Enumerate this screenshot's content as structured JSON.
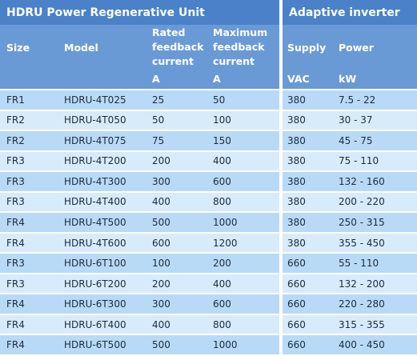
{
  "groups": {
    "left": "HDRU Power Regenerative Unit",
    "right": "Adaptive inverter"
  },
  "headers": [
    {
      "name": "Size",
      "unit": ""
    },
    {
      "name": "Model",
      "unit": ""
    },
    {
      "name": "Rated feedback current",
      "unit": "A"
    },
    {
      "name": "Maximum feedback current",
      "unit": "A"
    },
    {
      "name": "Supply",
      "unit": "VAC"
    },
    {
      "name": "Power",
      "unit": "kW"
    }
  ],
  "colors": {
    "group_header": "#4a81c9",
    "column_header": "#6a9ad6",
    "row_odd": "#b8daf7",
    "row_even": "#d8ebfb"
  },
  "rows": [
    [
      "FR1",
      "HDRU-4T025",
      "25",
      "50",
      "380",
      "7.5 - 22"
    ],
    [
      "FR2",
      "HDRU-4T050",
      "50",
      "100",
      "380",
      "30 - 37"
    ],
    [
      "FR2",
      "HDRU-4T075",
      "75",
      "150",
      "380",
      "45 - 75"
    ],
    [
      "FR3",
      "HDRU-4T200",
      "200",
      "400",
      "380",
      "75 - 110"
    ],
    [
      "FR3",
      "HDRU-4T300",
      "300",
      "600",
      "380",
      "132 - 160"
    ],
    [
      "FR3",
      "HDRU-4T400",
      "400",
      "800",
      "380",
      "200 - 220"
    ],
    [
      "FR4",
      "HDRU-4T500",
      "500",
      "1000",
      "380",
      "250 - 315"
    ],
    [
      "FR4",
      "HDRU-4T600",
      "600",
      "1200",
      "380",
      "355 - 450"
    ],
    [
      "FR3",
      "HDRU-6T100",
      "100",
      "200",
      "660",
      "55 - 110"
    ],
    [
      "FR3",
      "HDRU-6T200",
      "200",
      "400",
      "660",
      "132 - 200"
    ],
    [
      "FR4",
      "HDRU-6T300",
      "300",
      "600",
      "660",
      "220 - 280"
    ],
    [
      "FR4",
      "HDRU-6T400",
      "400",
      "800",
      "660",
      "315 - 355"
    ],
    [
      "FR4",
      "HDRU-6T500",
      "500",
      "1000",
      "660",
      "400 - 450"
    ]
  ]
}
